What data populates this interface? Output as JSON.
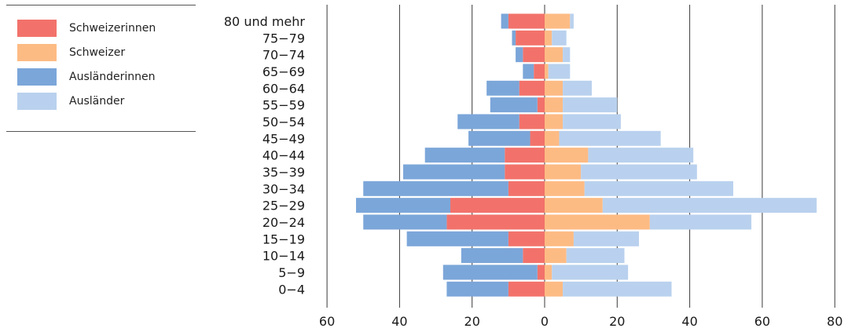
{
  "chart_data": {
    "type": "bar",
    "orientation": "horizontal",
    "layout": "population-pyramid",
    "categories": [
      "80 und mehr",
      "75−79",
      "70−74",
      "65−69",
      "60−64",
      "55−59",
      "50−54",
      "45−49",
      "40−44",
      "35−39",
      "30−34",
      "25−29",
      "20−24",
      "15−19",
      "10−14",
      "5−9",
      "0−4"
    ],
    "series": [
      {
        "name": "Schweizerinnen",
        "side": "left",
        "color": "#f2726b",
        "values": [
          10,
          8,
          6,
          3,
          7,
          2,
          7,
          4,
          11,
          11,
          10,
          26,
          27,
          10,
          6,
          2,
          10
        ]
      },
      {
        "name": "Schweizer",
        "side": "right",
        "color": "#fdbb84",
        "values": [
          7,
          2,
          5,
          1,
          5,
          5,
          5,
          4,
          12,
          10,
          11,
          16,
          29,
          8,
          6,
          2,
          5
        ]
      },
      {
        "name": "Ausländerinnen",
        "side": "left",
        "color": "#7ba6d9",
        "values": [
          2,
          1,
          2,
          3,
          9,
          13,
          17,
          17,
          22,
          28,
          40,
          26,
          23,
          28,
          17,
          26,
          17
        ]
      },
      {
        "name": "Ausländer",
        "side": "right",
        "color": "#b9d1ee",
        "values": [
          1,
          4,
          2,
          6,
          8,
          15,
          16,
          28,
          29,
          32,
          41,
          59,
          28,
          18,
          16,
          21,
          30
        ]
      }
    ],
    "x_ticks": [
      {
        "value": -60,
        "label": "60"
      },
      {
        "value": -40,
        "label": "40"
      },
      {
        "value": -20,
        "label": "20"
      },
      {
        "value": 0,
        "label": "0"
      },
      {
        "value": 20,
        "label": "20"
      },
      {
        "value": 40,
        "label": "40"
      },
      {
        "value": 60,
        "label": "60"
      },
      {
        "value": 80,
        "label": "80"
      }
    ],
    "xlim": [
      -60,
      80
    ],
    "grid": true,
    "legend_position": "top-left",
    "title": "",
    "xlabel": "",
    "ylabel": ""
  }
}
